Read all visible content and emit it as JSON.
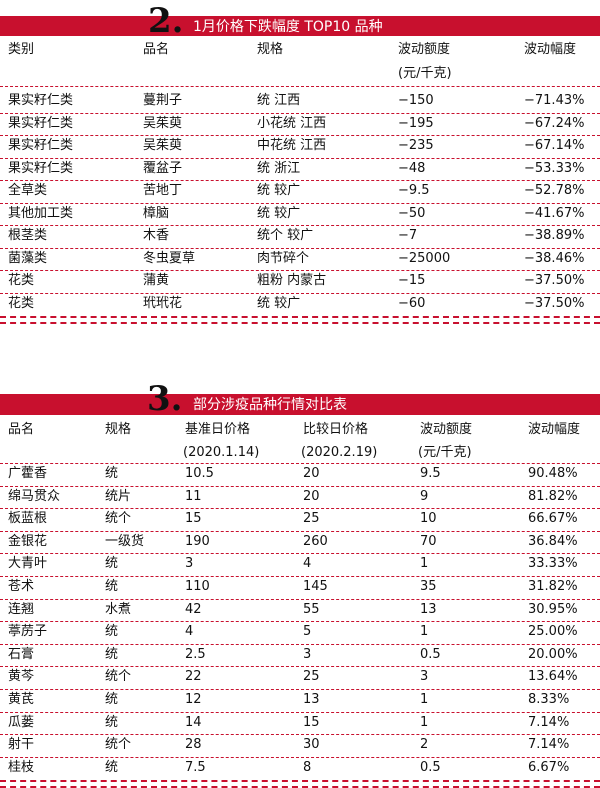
{
  "section2": {
    "number": "2.",
    "title": "1月价格下跌幅度 TOP10 品种",
    "headers": [
      "类别",
      "品名",
      "规格",
      "波动额度",
      "波动幅度"
    ],
    "unit": "(元/千克)",
    "rows": [
      [
        "果实籽仁类",
        "蔓荆子",
        "统 江西",
        "−150",
        "−71.43%"
      ],
      [
        "果实籽仁类",
        "吴茱萸",
        "小花统 江西",
        "−195",
        "−67.24%"
      ],
      [
        "果实籽仁类",
        "吴茱萸",
        "中花统 江西",
        "−235",
        "−67.14%"
      ],
      [
        "果实籽仁类",
        "覆盆子",
        "统 浙江",
        "−48",
        "−53.33%"
      ],
      [
        "全草类",
        "苦地丁",
        "统 较广",
        "−9.5",
        "−52.78%"
      ],
      [
        "其他加工类",
        "樟脑",
        "统 较广",
        "−50",
        "−41.67%"
      ],
      [
        "根茎类",
        "木香",
        "统个 较广",
        "−7",
        "−38.89%"
      ],
      [
        "菌藻类",
        "冬虫夏草",
        "肉节碎个",
        "−25000",
        "−38.46%"
      ],
      [
        "花类",
        "蒲黄",
        "粗粉 内蒙古",
        "−15",
        "−37.50%"
      ],
      [
        "花类",
        "玳玳花",
        "统 较广",
        "−60",
        "−37.50%"
      ]
    ]
  },
  "section3": {
    "number": "3.",
    "title": "部分涉疫品种行情对比表",
    "headers": [
      "品名",
      "规格",
      "基准日价格",
      "比较日价格",
      "波动额度",
      "波动幅度"
    ],
    "subheaders": [
      "",
      "",
      "(2020.1.14)",
      "(2020.2.19)",
      "(元/千克)",
      ""
    ],
    "rows": [
      [
        "广藿香",
        "统",
        "10.5",
        "20",
        "9.5",
        "90.48%"
      ],
      [
        "绵马贯众",
        "统片",
        "11",
        "20",
        "9",
        "81.82%"
      ],
      [
        "板蓝根",
        "统个",
        "15",
        "25",
        "10",
        "66.67%"
      ],
      [
        "金银花",
        "一级货",
        "190",
        "260",
        "70",
        "36.84%"
      ],
      [
        "大青叶",
        "统",
        "3",
        "4",
        "1",
        "33.33%"
      ],
      [
        "苍术",
        "统",
        "110",
        "145",
        "35",
        "31.82%"
      ],
      [
        "连翘",
        "水煮",
        "42",
        "55",
        "13",
        "30.95%"
      ],
      [
        "葶苈子",
        "统",
        "4",
        "5",
        "1",
        "25.00%"
      ],
      [
        "石膏",
        "统",
        "2.5",
        "3",
        "0.5",
        "20.00%"
      ],
      [
        "黄芩",
        "统个",
        "22",
        "25",
        "3",
        "13.64%"
      ],
      [
        "黄芪",
        "统",
        "12",
        "13",
        "1",
        "8.33%"
      ],
      [
        "瓜蒌",
        "统",
        "14",
        "15",
        "1",
        "7.14%"
      ],
      [
        "射干",
        "统个",
        "28",
        "30",
        "2",
        "7.14%"
      ],
      [
        "桂枝",
        "统",
        "7.5",
        "8",
        "0.5",
        "6.67%"
      ]
    ]
  }
}
